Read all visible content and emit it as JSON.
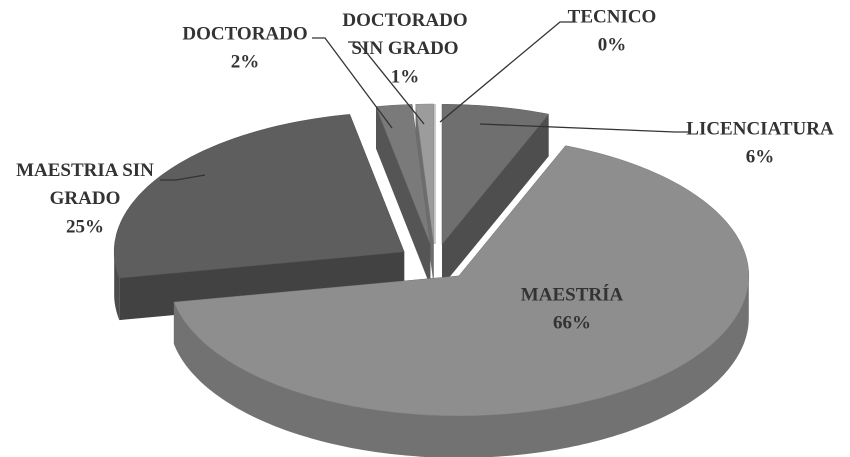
{
  "chart_data": {
    "type": "pie3d",
    "categories": [
      "TECNICO",
      "LICENCIATURA",
      "MAESTRÍA",
      "MAESTRIA SIN GRADO",
      "DOCTORADO",
      "DOCTORADO SIN GRADO"
    ],
    "values": [
      0,
      6,
      66,
      25,
      2,
      1
    ],
    "value_labels": [
      "0%",
      "6%",
      "66%",
      "25%",
      "2%",
      "1%"
    ],
    "colors": [
      "#8a8a8a",
      "#6f6f6f",
      "#8e8e8e",
      "#5e5e5e",
      "#7a7a7a",
      "#9c9c9c"
    ]
  }
}
